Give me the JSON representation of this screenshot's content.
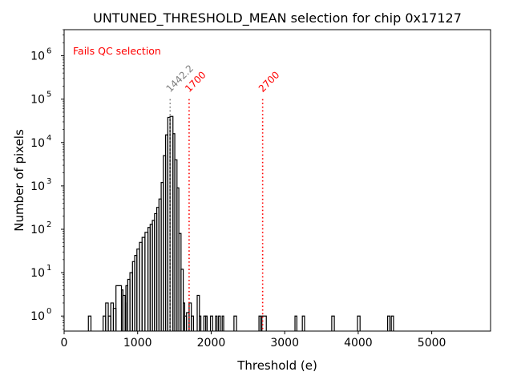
{
  "chart_data": {
    "type": "histogram",
    "title": "UNTUNED_THRESHOLD_MEAN selection for chip 0x17127",
    "xlabel": "Threshold (e)",
    "ylabel": "Number of pixels",
    "x_scale": "linear",
    "y_scale": "log",
    "xlim": [
      0,
      5800
    ],
    "ylim": [
      0.45,
      4000000
    ],
    "x_ticks": [
      0,
      1000,
      2000,
      3000,
      4000,
      5000
    ],
    "x_tick_labels": [
      "0",
      "1000",
      "2000",
      "3000",
      "4000",
      "5000"
    ],
    "y_ticks": [
      1,
      10,
      100,
      1000,
      10000,
      100000,
      1000000
    ],
    "y_tick_labels": [
      {
        "base": "10",
        "exp": "0"
      },
      {
        "base": "10",
        "exp": "1"
      },
      {
        "base": "10",
        "exp": "2"
      },
      {
        "base": "10",
        "exp": "3"
      },
      {
        "base": "10",
        "exp": "4"
      },
      {
        "base": "10",
        "exp": "5"
      },
      {
        "base": "10",
        "exp": "6"
      }
    ],
    "legend_text": "Fails QC selection",
    "legend_color": "#ff0000",
    "histogram_color": "#000000",
    "bins": [
      [
        330,
        365,
        1
      ],
      [
        530,
        565,
        1
      ],
      [
        565,
        600,
        2
      ],
      [
        600,
        635,
        1
      ],
      [
        635,
        670,
        2
      ],
      [
        670,
        705,
        1.5
      ],
      [
        705,
        780,
        5
      ],
      [
        780,
        800,
        4
      ],
      [
        800,
        830,
        3
      ],
      [
        830,
        840,
        2
      ],
      [
        840,
        865,
        5
      ],
      [
        865,
        895,
        7
      ],
      [
        895,
        930,
        10
      ],
      [
        930,
        960,
        18
      ],
      [
        960,
        990,
        25
      ],
      [
        990,
        1025,
        35
      ],
      [
        1025,
        1060,
        50
      ],
      [
        1060,
        1100,
        65
      ],
      [
        1100,
        1140,
        85
      ],
      [
        1140,
        1170,
        110
      ],
      [
        1170,
        1200,
        130
      ],
      [
        1200,
        1230,
        160
      ],
      [
        1230,
        1260,
        230
      ],
      [
        1260,
        1290,
        320
      ],
      [
        1290,
        1320,
        500
      ],
      [
        1320,
        1350,
        1200
      ],
      [
        1350,
        1380,
        5000
      ],
      [
        1380,
        1410,
        15000
      ],
      [
        1410,
        1440,
        38000
      ],
      [
        1440,
        1480,
        40000
      ],
      [
        1480,
        1505,
        16000
      ],
      [
        1505,
        1535,
        4000
      ],
      [
        1535,
        1560,
        900
      ],
      [
        1560,
        1590,
        80
      ],
      [
        1590,
        1620,
        12
      ],
      [
        1620,
        1640,
        2
      ],
      [
        1640,
        1665,
        1
      ],
      [
        1665,
        1700,
        1.2
      ],
      [
        1700,
        1730,
        2
      ],
      [
        1730,
        1760,
        1
      ],
      [
        1810,
        1840,
        3
      ],
      [
        1840,
        1860,
        1
      ],
      [
        1900,
        1925,
        1
      ],
      [
        1925,
        1945,
        1
      ],
      [
        1990,
        2020,
        1
      ],
      [
        2060,
        2080,
        1
      ],
      [
        2100,
        2125,
        1
      ],
      [
        2150,
        2170,
        1
      ],
      [
        2310,
        2345,
        1
      ],
      [
        2650,
        2675,
        1
      ],
      [
        2690,
        2750,
        1
      ],
      [
        3140,
        3165,
        1
      ],
      [
        3240,
        3270,
        1
      ],
      [
        3640,
        3675,
        1
      ],
      [
        3990,
        4025,
        1
      ],
      [
        4400,
        4430,
        1
      ],
      [
        4450,
        4480,
        1
      ]
    ],
    "threshold_lines": [
      {
        "x": 1442.2,
        "label": "1442.2",
        "color": "#808080"
      },
      {
        "x": 1700,
        "label": "1700",
        "color": "#ff0000"
      },
      {
        "x": 2700,
        "label": "2700",
        "color": "#ff0000"
      }
    ],
    "threshold_line_top": 100000
  }
}
